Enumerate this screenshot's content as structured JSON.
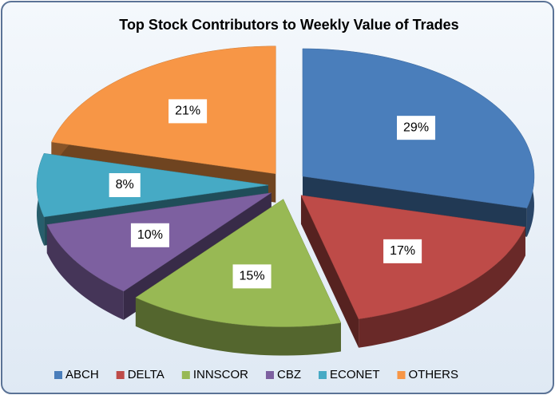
{
  "chart_data": {
    "type": "pie",
    "title": "Top Stock Contributors to Weekly Value of Trades",
    "categories": [
      "ABCH",
      "DELTA",
      "INNSCOR",
      "CBZ",
      "ECONET",
      "OTHERS"
    ],
    "values": [
      29,
      17,
      15,
      10,
      8,
      21
    ],
    "value_labels": [
      "29%",
      "17%",
      "15%",
      "10%",
      "8%",
      "21%"
    ],
    "colors": [
      "#4a7ebb",
      "#be4b48",
      "#98b954",
      "#7d60a0",
      "#46aac5",
      "#f79646"
    ],
    "legend": "bottom"
  }
}
